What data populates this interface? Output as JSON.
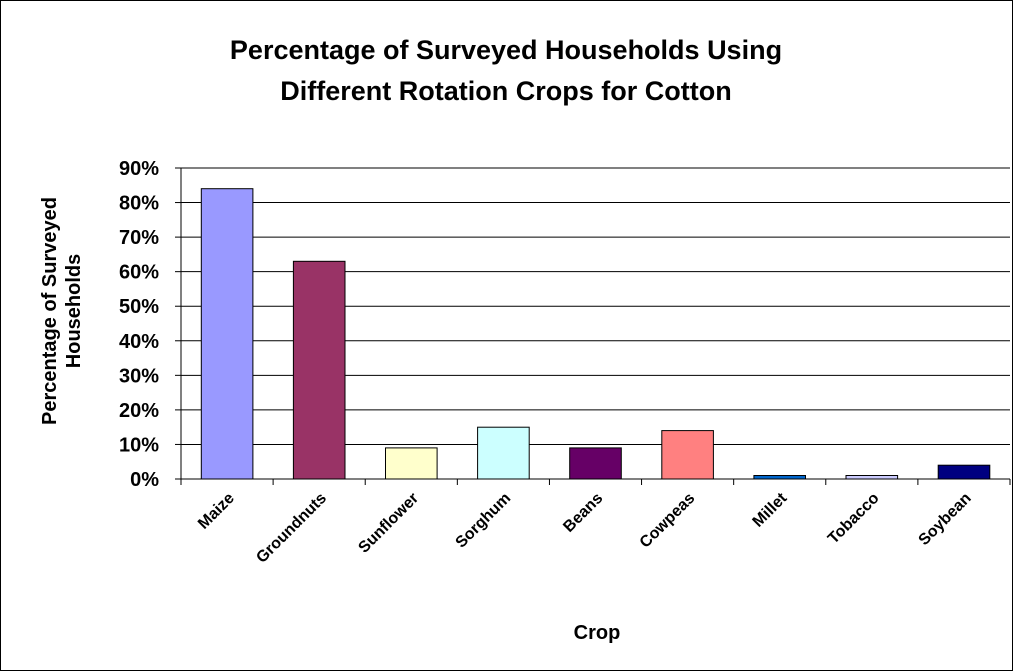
{
  "chart_data": {
    "type": "bar",
    "title": "Percentage of Surveyed Households Using Different Rotation Crops for Cotton",
    "title_lines": [
      "Percentage of Surveyed Households Using",
      "Different Rotation Crops for Cotton"
    ],
    "xlabel": "Crop",
    "ylabel": "Percentage of Surveyed Households",
    "ylabel_lines": [
      "Percentage of Surveyed",
      "Households"
    ],
    "categories": [
      "Maize",
      "Groundnuts",
      "Sunflower",
      "Sorghum",
      "Beans",
      "Cowpeas",
      "Millet",
      "Tobacco",
      "Soybean"
    ],
    "values": [
      84,
      63,
      9,
      15,
      9,
      14,
      1,
      1,
      4
    ],
    "bar_colors": [
      "#9999ff",
      "#993366",
      "#ffffcc",
      "#ccffff",
      "#660066",
      "#ff8080",
      "#0066cc",
      "#ccccff",
      "#000080"
    ],
    "ylim": [
      0,
      90
    ],
    "yticks": [
      0,
      10,
      20,
      30,
      40,
      50,
      60,
      70,
      80,
      90
    ],
    "ytick_labels": [
      "0%",
      "10%",
      "20%",
      "30%",
      "40%",
      "50%",
      "60%",
      "70%",
      "80%",
      "90%"
    ],
    "grid": true,
    "legend": "none"
  }
}
